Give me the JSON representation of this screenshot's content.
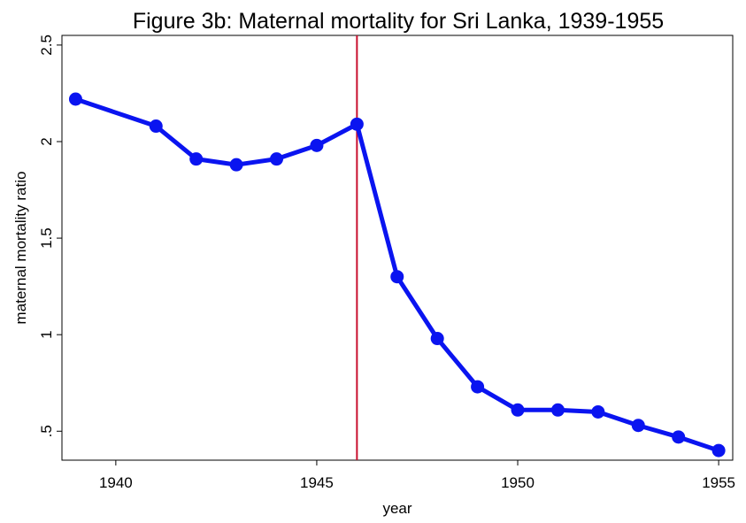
{
  "chart_data": {
    "type": "line",
    "title": "Figure 3b: Maternal mortality for Sri Lanka, 1939-1955",
    "xlabel": "year",
    "ylabel": "maternal mortality ratio",
    "x": [
      1939,
      1941,
      1942,
      1943,
      1944,
      1945,
      1946,
      1947,
      1948,
      1949,
      1950,
      1951,
      1952,
      1953,
      1954,
      1955
    ],
    "series": [
      {
        "name": "maternal mortality ratio",
        "color": "#0a14f0",
        "values": [
          2.22,
          2.08,
          1.91,
          1.88,
          1.91,
          1.98,
          2.09,
          1.3,
          0.98,
          0.73,
          0.61,
          0.61,
          0.6,
          0.53,
          0.47,
          0.4
        ]
      }
    ],
    "xlim": [
      1938.66,
      1955.35
    ],
    "xticks": [
      1940,
      1945,
      1950,
      1955
    ],
    "ylim": [
      0.35,
      2.55
    ],
    "yticks": [
      {
        "value": 0.5,
        "label": ".5"
      },
      1,
      1.5,
      2,
      2.5
    ],
    "vline": {
      "value": 1946,
      "color": "#c8102e"
    },
    "grid": false
  }
}
